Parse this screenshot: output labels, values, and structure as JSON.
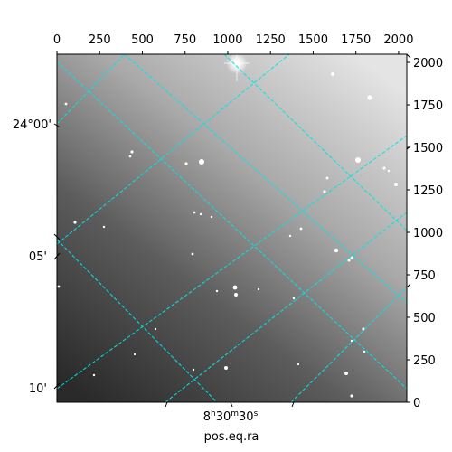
{
  "chart_data": {
    "type": "image",
    "image_colormap": "gray",
    "bottom_label": "pos.eq.ra",
    "top_axis": {
      "tick_labels": [
        "0",
        "250",
        "500",
        "750",
        "1000",
        "1250",
        "1500",
        "1750",
        "2000"
      ],
      "values": [
        0,
        250,
        500,
        750,
        1000,
        1250,
        1500,
        1750,
        2000
      ],
      "range": [
        0,
        2048
      ]
    },
    "right_axis": {
      "tick_labels": [
        "0",
        "250",
        "500",
        "750",
        "1000",
        "1250",
        "1500",
        "1750",
        "2000"
      ],
      "values": [
        0,
        250,
        500,
        750,
        1000,
        1250,
        1500,
        1750,
        2000
      ],
      "range": [
        0,
        2048
      ]
    },
    "left_axis": {
      "tick_labels": [
        "24°00'",
        "05'",
        "10'"
      ]
    },
    "bottom_axis": {
      "tick_label": {
        "h": "8",
        "m": "30",
        "s": "30"
      },
      "unit_h": "h",
      "unit_m": "m",
      "unit_s": "s"
    },
    "grid": {
      "shown": true,
      "color": "#00e5e5",
      "style": "dashed"
    }
  }
}
